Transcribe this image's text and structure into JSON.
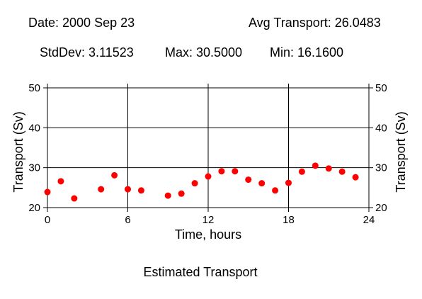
{
  "header": {
    "date": "Date: 2000 Sep 23",
    "avg": "Avg Transport: 26.0483",
    "stddev": "StdDev: 3.11523",
    "max": "Max: 30.5000",
    "min": "Min: 16.1600"
  },
  "footer": {
    "title": "Estimated Transport"
  },
  "chart_data": {
    "type": "scatter",
    "xlabel": "Time, hours",
    "ylabel": "Transport (Sv)",
    "xlim": [
      0,
      24
    ],
    "ylim": [
      20,
      50
    ],
    "xticks": [
      "0",
      "6",
      "12",
      "18",
      "24"
    ],
    "yticks": [
      "20",
      "30",
      "40",
      "50"
    ],
    "grid": true,
    "marker_color": "#ff0000",
    "x": [
      0,
      1,
      2,
      4,
      5,
      6,
      7,
      9,
      10,
      11,
      12,
      13,
      14,
      15,
      16,
      17,
      18,
      19,
      20,
      21,
      22,
      23
    ],
    "y": [
      23.9,
      26.6,
      22.3,
      24.6,
      28.1,
      24.6,
      24.3,
      23.0,
      23.5,
      26.1,
      27.8,
      29.1,
      29.1,
      27.0,
      26.1,
      24.3,
      26.2,
      29.0,
      30.5,
      29.8,
      29.0,
      27.6
    ]
  }
}
